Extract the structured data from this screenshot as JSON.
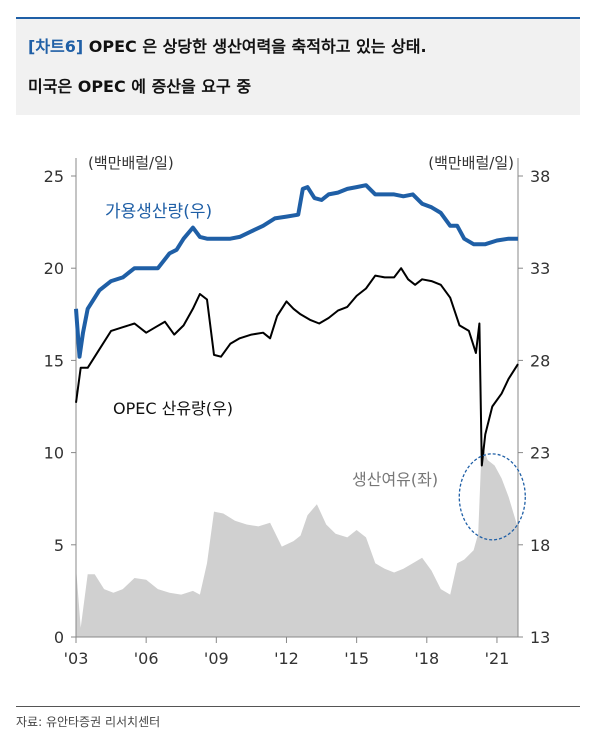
{
  "title": {
    "tag": "[차트6]",
    "line1": "OPEC 은 상당한 생산여력을 축적하고 있는 상태.",
    "line2": "미국은 OPEC 에 증산을 요구 중"
  },
  "source": "자료: 유안타증권 리서치센터",
  "colors": {
    "capacity": "#1f5fa6",
    "production": "#000000",
    "spare": "#d0d0d0",
    "title_accent": "#1f5fa6",
    "highlight": "#1f5fa6"
  },
  "chart_data": {
    "type": "line",
    "title": "",
    "left_axis": {
      "unit_label": "(백만배럴/일)",
      "range": [
        0,
        25
      ],
      "ticks": [
        "0",
        "5",
        "10",
        "15",
        "20",
        "25"
      ]
    },
    "right_axis": {
      "unit_label": "(백만배럴/일)",
      "range": [
        13,
        38
      ],
      "ticks": [
        "13",
        "18",
        "23",
        "28",
        "33",
        "38"
      ]
    },
    "x_axis": {
      "range": [
        2003,
        2021.9
      ],
      "ticks": [
        "'03",
        "'06",
        "'09",
        "'12",
        "'15",
        "'18",
        "'21"
      ]
    },
    "series": [
      {
        "name": "가용생산량(우)",
        "axis": "right",
        "style": "line",
        "x": [
          2003.0,
          2003.15,
          2003.3,
          2003.5,
          2004.0,
          2004.5,
          2005.0,
          2005.5,
          2006.0,
          2006.5,
          2007.0,
          2007.3,
          2007.6,
          2008.0,
          2008.3,
          2008.6,
          2008.9,
          2009.2,
          2009.6,
          2010.0,
          2010.5,
          2011.0,
          2011.5,
          2012.0,
          2012.5,
          2012.7,
          2012.9,
          2013.2,
          2013.5,
          2013.8,
          2014.2,
          2014.6,
          2015.0,
          2015.4,
          2015.8,
          2016.2,
          2016.6,
          2017.0,
          2017.4,
          2017.8,
          2018.2,
          2018.6,
          2019.0,
          2019.3,
          2019.6,
          2020.0,
          2020.5,
          2021.0,
          2021.5,
          2021.9
        ],
        "y": [
          30.8,
          28.2,
          29.5,
          30.8,
          31.8,
          32.3,
          32.5,
          33.0,
          33.0,
          33.0,
          33.8,
          34.0,
          34.6,
          35.2,
          34.7,
          34.6,
          34.6,
          34.6,
          34.6,
          34.7,
          35.0,
          35.3,
          35.7,
          35.8,
          35.9,
          37.3,
          37.4,
          36.8,
          36.7,
          37.0,
          37.1,
          37.3,
          37.4,
          37.5,
          37.0,
          37.0,
          37.0,
          36.9,
          37.0,
          36.5,
          36.3,
          36.0,
          35.3,
          35.3,
          34.6,
          34.3,
          34.3,
          34.5,
          34.6,
          34.6
        ]
      },
      {
        "name": "OPEC 산유량(우)",
        "axis": "right",
        "style": "line",
        "x": [
          2003.0,
          2003.2,
          2003.5,
          2004.0,
          2004.5,
          2005.0,
          2005.5,
          2006.0,
          2006.4,
          2006.8,
          2007.2,
          2007.6,
          2008.0,
          2008.3,
          2008.6,
          2008.9,
          2009.2,
          2009.6,
          2010.0,
          2010.5,
          2011.0,
          2011.3,
          2011.6,
          2012.0,
          2012.3,
          2012.6,
          2013.0,
          2013.4,
          2013.8,
          2014.2,
          2014.6,
          2015.0,
          2015.4,
          2015.8,
          2016.2,
          2016.6,
          2016.9,
          2017.2,
          2017.5,
          2017.8,
          2018.2,
          2018.6,
          2019.0,
          2019.4,
          2019.8,
          2020.1,
          2020.25,
          2020.35,
          2020.5,
          2020.8,
          2021.2,
          2021.5,
          2021.9
        ],
        "y": [
          25.7,
          27.6,
          27.6,
          28.6,
          29.6,
          29.8,
          30.0,
          29.5,
          29.8,
          30.1,
          29.4,
          29.9,
          30.8,
          31.6,
          31.3,
          28.3,
          28.2,
          28.9,
          29.2,
          29.4,
          29.5,
          29.2,
          30.4,
          31.2,
          30.8,
          30.5,
          30.2,
          30.0,
          30.3,
          30.7,
          30.9,
          31.5,
          31.9,
          32.6,
          32.5,
          32.5,
          33.0,
          32.4,
          32.1,
          32.4,
          32.3,
          32.1,
          31.4,
          29.9,
          29.6,
          28.4,
          30.0,
          22.3,
          24.0,
          25.5,
          26.2,
          27.0,
          27.8
        ]
      },
      {
        "name": "생산여유(좌)",
        "axis": "left",
        "style": "area",
        "x": [
          2003.0,
          2003.2,
          2003.5,
          2003.8,
          2004.2,
          2004.6,
          2005.0,
          2005.5,
          2006.0,
          2006.5,
          2007.0,
          2007.5,
          2008.0,
          2008.3,
          2008.6,
          2008.9,
          2009.3,
          2009.8,
          2010.3,
          2010.8,
          2011.3,
          2011.8,
          2012.3,
          2012.6,
          2012.9,
          2013.3,
          2013.7,
          2014.1,
          2014.6,
          2015.0,
          2015.4,
          2015.8,
          2016.2,
          2016.6,
          2017.0,
          2017.4,
          2017.8,
          2018.2,
          2018.6,
          2019.0,
          2019.3,
          2019.6,
          2020.0,
          2020.2,
          2020.35,
          2020.6,
          2020.9,
          2021.2,
          2021.5,
          2021.9
        ],
        "y": [
          3.8,
          0.5,
          3.4,
          3.4,
          2.6,
          2.4,
          2.6,
          3.2,
          3.1,
          2.6,
          2.4,
          2.3,
          2.5,
          2.3,
          4.0,
          6.8,
          6.7,
          6.3,
          6.1,
          6.0,
          6.2,
          4.9,
          5.2,
          5.5,
          6.6,
          7.2,
          6.1,
          5.6,
          5.4,
          5.8,
          5.4,
          4.0,
          3.7,
          3.5,
          3.7,
          4.0,
          4.3,
          3.6,
          2.6,
          2.3,
          4.0,
          4.2,
          4.7,
          5.6,
          10.5,
          9.6,
          9.3,
          8.6,
          7.6,
          5.9
        ]
      }
    ],
    "annotations": [
      "생산여유(좌)"
    ]
  }
}
